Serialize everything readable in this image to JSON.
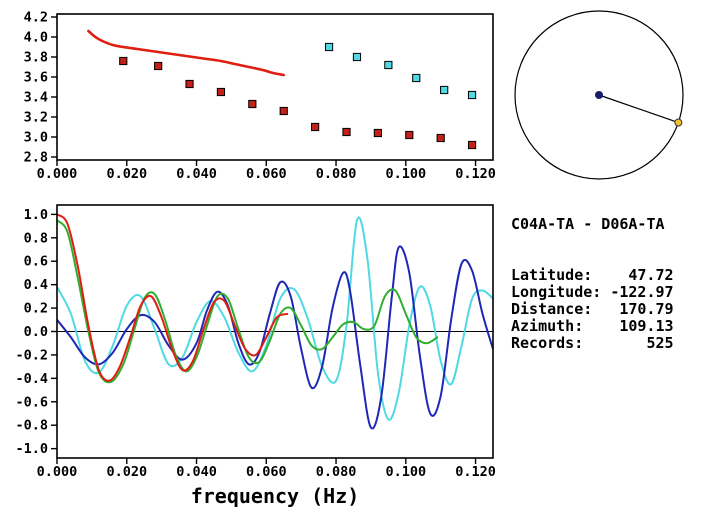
{
  "info_panel": {
    "pair_title": "C04A-TA - D06A-TA",
    "fields": [
      {
        "label": "Latitude:",
        "value": "47.72"
      },
      {
        "label": "Longitude:",
        "value": "-122.97"
      },
      {
        "label": "Distance:",
        "value": "170.79"
      },
      {
        "label": "Azimuth:",
        "value": "109.13"
      },
      {
        "label": "Records:",
        "value": "525"
      }
    ]
  },
  "azimuth_dial": {
    "azimuth_deg": 109.13,
    "circle_color": "#000000",
    "line_color": "#000000",
    "center_dot_color": "#1c1c6e",
    "endpoint_dot_color": "#f2c12e"
  },
  "colors": {
    "red": "#df1d10",
    "dark_red_marker": "#c32019",
    "cyan": "#4fd9e4",
    "green": "#2fae2f",
    "blue": "#1f28b4",
    "axis": "#000000"
  },
  "chart_data": [
    {
      "id": "dispersion",
      "type": "line",
      "title": "",
      "xlabel": "",
      "ylabel": "",
      "xlim": [
        0,
        0.125
      ],
      "ylim": [
        2.77,
        4.23
      ],
      "grid": false,
      "legend": false,
      "xticks": [
        0.0,
        0.02,
        0.04,
        0.06,
        0.08,
        0.1,
        0.12
      ],
      "xtick_labels": [
        "0.000",
        "0.020",
        "0.040",
        "0.060",
        "0.080",
        "0.100",
        "0.120"
      ],
      "yticks": [
        2.8,
        3.0,
        3.2,
        3.4,
        3.6,
        3.8,
        4.0,
        4.2
      ],
      "ytick_labels": [
        "2.8",
        "3.0",
        "3.2",
        "3.4",
        "3.6",
        "3.8",
        "4.0",
        "4.2"
      ],
      "zero_line": false,
      "series": [
        {
          "name": "red-curve",
          "type": "line",
          "color": "#df1d10",
          "width": 2.6,
          "points": [
            [
              0.009,
              4.06
            ],
            [
              0.011,
              4.0
            ],
            [
              0.013,
              3.96
            ],
            [
              0.016,
              3.92
            ],
            [
              0.019,
              3.9
            ],
            [
              0.023,
              3.88
            ],
            [
              0.027,
              3.86
            ],
            [
              0.031,
              3.84
            ],
            [
              0.035,
              3.82
            ],
            [
              0.039,
              3.8
            ],
            [
              0.043,
              3.78
            ],
            [
              0.047,
              3.76
            ],
            [
              0.051,
              3.73
            ],
            [
              0.055,
              3.7
            ],
            [
              0.059,
              3.67
            ],
            [
              0.062,
              3.64
            ],
            [
              0.065,
              3.62
            ]
          ]
        },
        {
          "name": "red-squares",
          "type": "markers",
          "color": "#c32019",
          "points": [
            [
              0.019,
              3.76
            ],
            [
              0.029,
              3.71
            ],
            [
              0.038,
              3.53
            ],
            [
              0.047,
              3.45
            ],
            [
              0.056,
              3.33
            ],
            [
              0.065,
              3.26
            ],
            [
              0.074,
              3.1
            ],
            [
              0.083,
              3.05
            ],
            [
              0.092,
              3.04
            ],
            [
              0.101,
              3.02
            ],
            [
              0.11,
              2.99
            ],
            [
              0.119,
              2.92
            ]
          ]
        },
        {
          "name": "cyan-squares",
          "type": "markers",
          "color": "#4fd9e4",
          "points": [
            [
              0.078,
              3.9
            ],
            [
              0.086,
              3.8
            ],
            [
              0.095,
              3.72
            ],
            [
              0.103,
              3.59
            ],
            [
              0.111,
              3.47
            ],
            [
              0.119,
              3.42
            ]
          ]
        }
      ]
    },
    {
      "id": "waveforms",
      "type": "line",
      "title": "",
      "xlabel": "frequency (Hz)",
      "ylabel": "",
      "xlim": [
        0,
        0.125
      ],
      "ylim": [
        -1.08,
        1.08
      ],
      "grid": false,
      "legend": false,
      "xticks": [
        0.0,
        0.02,
        0.04,
        0.06,
        0.08,
        0.1,
        0.12
      ],
      "xtick_labels": [
        "0.000",
        "0.020",
        "0.040",
        "0.060",
        "0.080",
        "0.100",
        "0.120"
      ],
      "yticks": [
        -1.0,
        -0.8,
        -0.6,
        -0.4,
        -0.2,
        0.0,
        0.2,
        0.4,
        0.6,
        0.8,
        1.0
      ],
      "ytick_labels": [
        "-1.0",
        "-0.8",
        "-0.6",
        "-0.4",
        "-0.2",
        "0.0",
        "0.2",
        "0.4",
        "0.6",
        "0.8",
        "1.0"
      ],
      "zero_line": true,
      "series": [
        {
          "name": "cyan-trace",
          "type": "line",
          "color": "#4fd9e4",
          "width": 2.0,
          "points": [
            [
              0.0,
              0.38
            ],
            [
              0.004,
              0.15
            ],
            [
              0.008,
              -0.25
            ],
            [
              0.012,
              -0.35
            ],
            [
              0.016,
              -0.12
            ],
            [
              0.02,
              0.22
            ],
            [
              0.024,
              0.3
            ],
            [
              0.028,
              0.02
            ],
            [
              0.032,
              -0.28
            ],
            [
              0.036,
              -0.22
            ],
            [
              0.04,
              0.08
            ],
            [
              0.044,
              0.26
            ],
            [
              0.048,
              0.12
            ],
            [
              0.052,
              -0.18
            ],
            [
              0.056,
              -0.34
            ],
            [
              0.06,
              -0.12
            ],
            [
              0.064,
              0.28
            ],
            [
              0.068,
              0.36
            ],
            [
              0.072,
              0.1
            ],
            [
              0.076,
              -0.3
            ],
            [
              0.08,
              -0.42
            ],
            [
              0.083,
              0.05
            ],
            [
              0.086,
              0.95
            ],
            [
              0.089,
              0.62
            ],
            [
              0.092,
              -0.35
            ],
            [
              0.095,
              -0.75
            ],
            [
              0.098,
              -0.52
            ],
            [
              0.101,
              0.05
            ],
            [
              0.104,
              0.38
            ],
            [
              0.107,
              0.22
            ],
            [
              0.11,
              -0.25
            ],
            [
              0.113,
              -0.45
            ],
            [
              0.116,
              -0.12
            ],
            [
              0.119,
              0.28
            ],
            [
              0.122,
              0.35
            ],
            [
              0.125,
              0.28
            ]
          ]
        },
        {
          "name": "blue-trace",
          "type": "line",
          "color": "#1f28b4",
          "width": 2.0,
          "points": [
            [
              0.0,
              0.1
            ],
            [
              0.004,
              -0.05
            ],
            [
              0.008,
              -0.22
            ],
            [
              0.012,
              -0.28
            ],
            [
              0.016,
              -0.18
            ],
            [
              0.02,
              0.02
            ],
            [
              0.024,
              0.14
            ],
            [
              0.028,
              0.08
            ],
            [
              0.032,
              -0.12
            ],
            [
              0.036,
              -0.24
            ],
            [
              0.04,
              -0.1
            ],
            [
              0.043,
              0.18
            ],
            [
              0.046,
              0.34
            ],
            [
              0.049,
              0.22
            ],
            [
              0.052,
              -0.1
            ],
            [
              0.055,
              -0.28
            ],
            [
              0.058,
              -0.18
            ],
            [
              0.061,
              0.15
            ],
            [
              0.064,
              0.42
            ],
            [
              0.067,
              0.3
            ],
            [
              0.07,
              -0.15
            ],
            [
              0.073,
              -0.48
            ],
            [
              0.076,
              -0.3
            ],
            [
              0.079,
              0.2
            ],
            [
              0.082,
              0.5
            ],
            [
              0.084,
              0.35
            ],
            [
              0.087,
              -0.3
            ],
            [
              0.09,
              -0.82
            ],
            [
              0.093,
              -0.55
            ],
            [
              0.096,
              0.3
            ],
            [
              0.098,
              0.72
            ],
            [
              0.101,
              0.5
            ],
            [
              0.104,
              -0.2
            ],
            [
              0.107,
              -0.7
            ],
            [
              0.11,
              -0.55
            ],
            [
              0.113,
              0.1
            ],
            [
              0.116,
              0.58
            ],
            [
              0.119,
              0.52
            ],
            [
              0.122,
              0.15
            ],
            [
              0.125,
              -0.15
            ]
          ]
        },
        {
          "name": "green-trace",
          "type": "line",
          "color": "#2fae2f",
          "width": 2.0,
          "points": [
            [
              0.0,
              0.95
            ],
            [
              0.003,
              0.85
            ],
            [
              0.006,
              0.45
            ],
            [
              0.009,
              0.0
            ],
            [
              0.012,
              -0.35
            ],
            [
              0.0155,
              -0.43
            ],
            [
              0.019,
              -0.28
            ],
            [
              0.022,
              0.0
            ],
            [
              0.025,
              0.28
            ],
            [
              0.028,
              0.32
            ],
            [
              0.031,
              0.1
            ],
            [
              0.034,
              -0.2
            ],
            [
              0.037,
              -0.34
            ],
            [
              0.04,
              -0.22
            ],
            [
              0.043,
              0.05
            ],
            [
              0.046,
              0.3
            ],
            [
              0.049,
              0.28
            ],
            [
              0.052,
              0.02
            ],
            [
              0.055,
              -0.22
            ],
            [
              0.058,
              -0.26
            ],
            [
              0.061,
              -0.08
            ],
            [
              0.064,
              0.15
            ],
            [
              0.067,
              0.2
            ],
            [
              0.07,
              0.05
            ],
            [
              0.073,
              -0.12
            ],
            [
              0.076,
              -0.15
            ],
            [
              0.079,
              -0.05
            ],
            [
              0.082,
              0.06
            ],
            [
              0.085,
              0.08
            ],
            [
              0.088,
              0.02
            ],
            [
              0.091,
              0.05
            ],
            [
              0.094,
              0.3
            ],
            [
              0.097,
              0.35
            ],
            [
              0.1,
              0.15
            ],
            [
              0.103,
              -0.05
            ],
            [
              0.106,
              -0.1
            ],
            [
              0.109,
              -0.05
            ]
          ]
        },
        {
          "name": "red-trace",
          "type": "line",
          "color": "#df1d10",
          "width": 2.0,
          "points": [
            [
              0.0,
              1.0
            ],
            [
              0.003,
              0.92
            ],
            [
              0.006,
              0.55
            ],
            [
              0.009,
              0.05
            ],
            [
              0.012,
              -0.33
            ],
            [
              0.015,
              -0.42
            ],
            [
              0.018,
              -0.3
            ],
            [
              0.021,
              -0.05
            ],
            [
              0.024,
              0.22
            ],
            [
              0.027,
              0.3
            ],
            [
              0.03,
              0.12
            ],
            [
              0.033,
              -0.15
            ],
            [
              0.036,
              -0.33
            ],
            [
              0.039,
              -0.25
            ],
            [
              0.042,
              0.02
            ],
            [
              0.045,
              0.25
            ],
            [
              0.048,
              0.26
            ],
            [
              0.051,
              0.05
            ],
            [
              0.054,
              -0.15
            ],
            [
              0.057,
              -0.2
            ],
            [
              0.06,
              -0.05
            ],
            [
              0.063,
              0.12
            ],
            [
              0.066,
              0.15
            ]
          ]
        }
      ]
    }
  ]
}
